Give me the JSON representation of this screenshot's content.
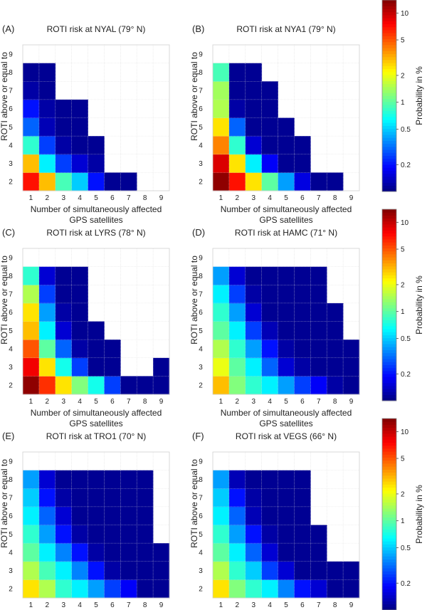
{
  "figure": {
    "xlabel_line1": "Number of simultaneously affected",
    "xlabel_line2": "GPS satellites",
    "ylabel": "ROTI above or equal to",
    "colorbar_label": "Probability in %",
    "colorbar_ticks": [
      "10",
      "5",
      "2",
      "1",
      "0.5",
      "0.2"
    ],
    "colorbar_tick_values": [
      10,
      5,
      2,
      1,
      0.5,
      0.2
    ],
    "colorbar_range": [
      0.1,
      14
    ],
    "colormap": "jet",
    "empty_color": "#ffffff"
  },
  "chart_data": [
    {
      "type": "heatmap",
      "panel": "(A)",
      "title": "ROTI risk at NYAL (79° N)",
      "x": [
        1,
        2,
        3,
        4,
        5,
        6,
        7,
        8,
        9
      ],
      "y": [
        2,
        3,
        4,
        5,
        6,
        7,
        8,
        9
      ],
      "xlabel": "Number of simultaneously affected GPS satellites",
      "ylabel": "ROTI above or equal to",
      "scale": "log",
      "values_percent": [
        [
          7.0,
          3.0,
          0.9,
          0.5,
          0.2,
          0.11,
          0.11,
          null,
          null
        ],
        [
          3.0,
          0.6,
          0.25,
          0.15,
          0.12,
          null,
          null,
          null,
          null
        ],
        [
          0.8,
          0.25,
          0.12,
          0.11,
          0.11,
          null,
          null,
          null,
          null
        ],
        [
          0.3,
          0.13,
          0.11,
          0.11,
          null,
          null,
          null,
          null,
          null
        ],
        [
          0.2,
          0.12,
          0.11,
          0.11,
          null,
          null,
          null,
          null,
          null
        ],
        [
          0.12,
          0.11,
          null,
          null,
          null,
          null,
          null,
          null,
          null
        ],
        [
          0.11,
          0.11,
          null,
          null,
          null,
          null,
          null,
          null,
          null
        ],
        [
          null,
          null,
          null,
          null,
          null,
          null,
          null,
          null,
          null
        ]
      ]
    },
    {
      "type": "heatmap",
      "panel": "(B)",
      "title": "ROTI risk at NYA1 (79° N)",
      "x": [
        1,
        2,
        3,
        4,
        5,
        6,
        7,
        8,
        9
      ],
      "y": [
        2,
        3,
        4,
        5,
        6,
        7,
        8,
        9
      ],
      "xlabel": "Number of simultaneously affected GPS satellites",
      "ylabel": "ROTI above or equal to",
      "scale": "log",
      "values_percent": [
        [
          13.0,
          7.0,
          2.5,
          1.0,
          0.4,
          0.16,
          0.11,
          0.11,
          null
        ],
        [
          9.0,
          2.5,
          0.6,
          0.18,
          0.11,
          0.11,
          null,
          null,
          null
        ],
        [
          4.0,
          0.8,
          0.15,
          0.11,
          0.11,
          0.11,
          null,
          null,
          null
        ],
        [
          2.5,
          0.3,
          0.11,
          0.11,
          0.11,
          null,
          null,
          null,
          null
        ],
        [
          1.5,
          0.12,
          0.11,
          0.11,
          null,
          null,
          null,
          null,
          null
        ],
        [
          1.4,
          0.11,
          0.11,
          0.11,
          null,
          null,
          null,
          null,
          null
        ],
        [
          0.9,
          0.11,
          0.11,
          null,
          null,
          null,
          null,
          null,
          null
        ],
        [
          null,
          null,
          null,
          null,
          null,
          null,
          null,
          null,
          null
        ]
      ]
    },
    {
      "type": "heatmap",
      "panel": "(C)",
      "title": "ROTI risk at LYRS (78° N)",
      "x": [
        1,
        2,
        3,
        4,
        5,
        6,
        7,
        8,
        9
      ],
      "y": [
        2,
        3,
        4,
        5,
        6,
        7,
        8,
        9
      ],
      "xlabel": "Number of simultaneously affected GPS satellites",
      "ylabel": "ROTI above or equal to",
      "scale": "log",
      "values_percent": [
        [
          13.0,
          6.0,
          2.5,
          1.2,
          0.7,
          0.25,
          0.11,
          0.11,
          0.11
        ],
        [
          8.0,
          2.5,
          0.7,
          0.25,
          0.11,
          0.11,
          null,
          null,
          0.11
        ],
        [
          5.0,
          1.0,
          0.3,
          0.12,
          0.11,
          0.11,
          null,
          null,
          null
        ],
        [
          3.0,
          0.6,
          0.15,
          0.11,
          0.11,
          null,
          null,
          null,
          null
        ],
        [
          2.5,
          0.4,
          0.12,
          0.11,
          null,
          null,
          null,
          null,
          null
        ],
        [
          1.5,
          0.25,
          0.11,
          0.11,
          null,
          null,
          null,
          null,
          null
        ],
        [
          0.8,
          0.15,
          0.11,
          0.11,
          null,
          null,
          null,
          null,
          null
        ],
        [
          null,
          null,
          null,
          null,
          null,
          null,
          null,
          null,
          null
        ]
      ]
    },
    {
      "type": "heatmap",
      "panel": "(D)",
      "title": "ROTI risk at HAMC (71° N)",
      "x": [
        1,
        2,
        3,
        4,
        5,
        6,
        7,
        8,
        9
      ],
      "y": [
        2,
        3,
        4,
        5,
        6,
        7,
        8,
        9
      ],
      "xlabel": "Number of simultaneously affected GPS satellites",
      "ylabel": "ROTI above or equal to",
      "scale": "log",
      "values_percent": [
        [
          3.0,
          1.2,
          0.8,
          0.6,
          0.4,
          0.25,
          0.18,
          0.12,
          0.11
        ],
        [
          2.0,
          1.0,
          0.6,
          0.3,
          0.15,
          0.12,
          0.11,
          0.11,
          0.11
        ],
        [
          1.5,
          0.8,
          0.4,
          0.2,
          0.12,
          0.11,
          0.11,
          0.11,
          0.11
        ],
        [
          1.0,
          0.6,
          0.25,
          0.13,
          0.11,
          0.11,
          0.11,
          0.11,
          null
        ],
        [
          0.8,
          0.4,
          0.15,
          0.11,
          0.11,
          0.11,
          0.11,
          0.11,
          null
        ],
        [
          0.6,
          0.25,
          0.12,
          0.11,
          0.11,
          0.11,
          0.11,
          null,
          null
        ],
        [
          0.4,
          0.15,
          0.11,
          0.11,
          0.11,
          0.11,
          0.11,
          null,
          null
        ],
        [
          null,
          null,
          null,
          null,
          null,
          null,
          null,
          null,
          null
        ]
      ]
    },
    {
      "type": "heatmap",
      "panel": "(E)",
      "title": "ROTI risk at TRO1 (70° N)",
      "x": [
        1,
        2,
        3,
        4,
        5,
        6,
        7,
        8,
        9
      ],
      "y": [
        2,
        3,
        4,
        5,
        6,
        7,
        8,
        9
      ],
      "xlabel": "Number of simultaneously affected GPS satellites",
      "ylabel": "ROTI above or equal to",
      "scale": "log",
      "values_percent": [
        [
          2.5,
          1.5,
          0.8,
          0.6,
          0.4,
          0.25,
          0.18,
          0.11,
          0.11
        ],
        [
          1.5,
          0.9,
          0.6,
          0.35,
          0.2,
          0.12,
          0.11,
          0.11,
          0.11
        ],
        [
          1.0,
          0.6,
          0.35,
          0.2,
          0.12,
          0.11,
          0.11,
          0.11,
          0.11
        ],
        [
          0.8,
          0.4,
          0.2,
          0.12,
          0.11,
          0.11,
          0.11,
          0.11,
          null
        ],
        [
          0.6,
          0.3,
          0.15,
          0.11,
          0.11,
          0.11,
          0.11,
          0.11,
          null
        ],
        [
          0.5,
          0.2,
          0.12,
          0.11,
          0.11,
          0.11,
          0.11,
          0.11,
          null
        ],
        [
          0.4,
          0.15,
          0.11,
          0.11,
          0.11,
          0.11,
          0.11,
          0.11,
          null
        ],
        [
          null,
          null,
          null,
          null,
          null,
          null,
          null,
          null,
          null
        ]
      ]
    },
    {
      "type": "heatmap",
      "panel": "(F)",
      "title": "ROTI risk at VEGS (66° N)",
      "x": [
        1,
        2,
        3,
        4,
        5,
        6,
        7,
        8,
        9
      ],
      "y": [
        2,
        3,
        4,
        5,
        6,
        7,
        8,
        9
      ],
      "xlabel": "Number of simultaneously affected GPS satellites",
      "ylabel": "ROTI above or equal to",
      "scale": "log",
      "values_percent": [
        [
          2.5,
          1.2,
          0.8,
          0.6,
          0.35,
          0.2,
          0.15,
          0.11,
          0.11
        ],
        [
          1.5,
          0.8,
          0.5,
          0.25,
          0.15,
          0.11,
          0.11,
          0.11,
          0.11
        ],
        [
          1.0,
          0.6,
          0.3,
          0.15,
          0.11,
          0.11,
          0.11,
          null,
          null
        ],
        [
          0.8,
          0.4,
          0.2,
          0.12,
          0.11,
          0.11,
          0.11,
          null,
          null
        ],
        [
          0.6,
          0.3,
          0.13,
          0.11,
          0.11,
          0.11,
          null,
          null,
          null
        ],
        [
          0.5,
          0.2,
          0.12,
          0.11,
          0.11,
          0.11,
          null,
          null,
          null
        ],
        [
          0.4,
          0.13,
          0.11,
          0.11,
          0.11,
          0.11,
          null,
          null,
          null
        ],
        [
          null,
          null,
          null,
          null,
          null,
          null,
          null,
          null,
          null
        ]
      ]
    }
  ]
}
